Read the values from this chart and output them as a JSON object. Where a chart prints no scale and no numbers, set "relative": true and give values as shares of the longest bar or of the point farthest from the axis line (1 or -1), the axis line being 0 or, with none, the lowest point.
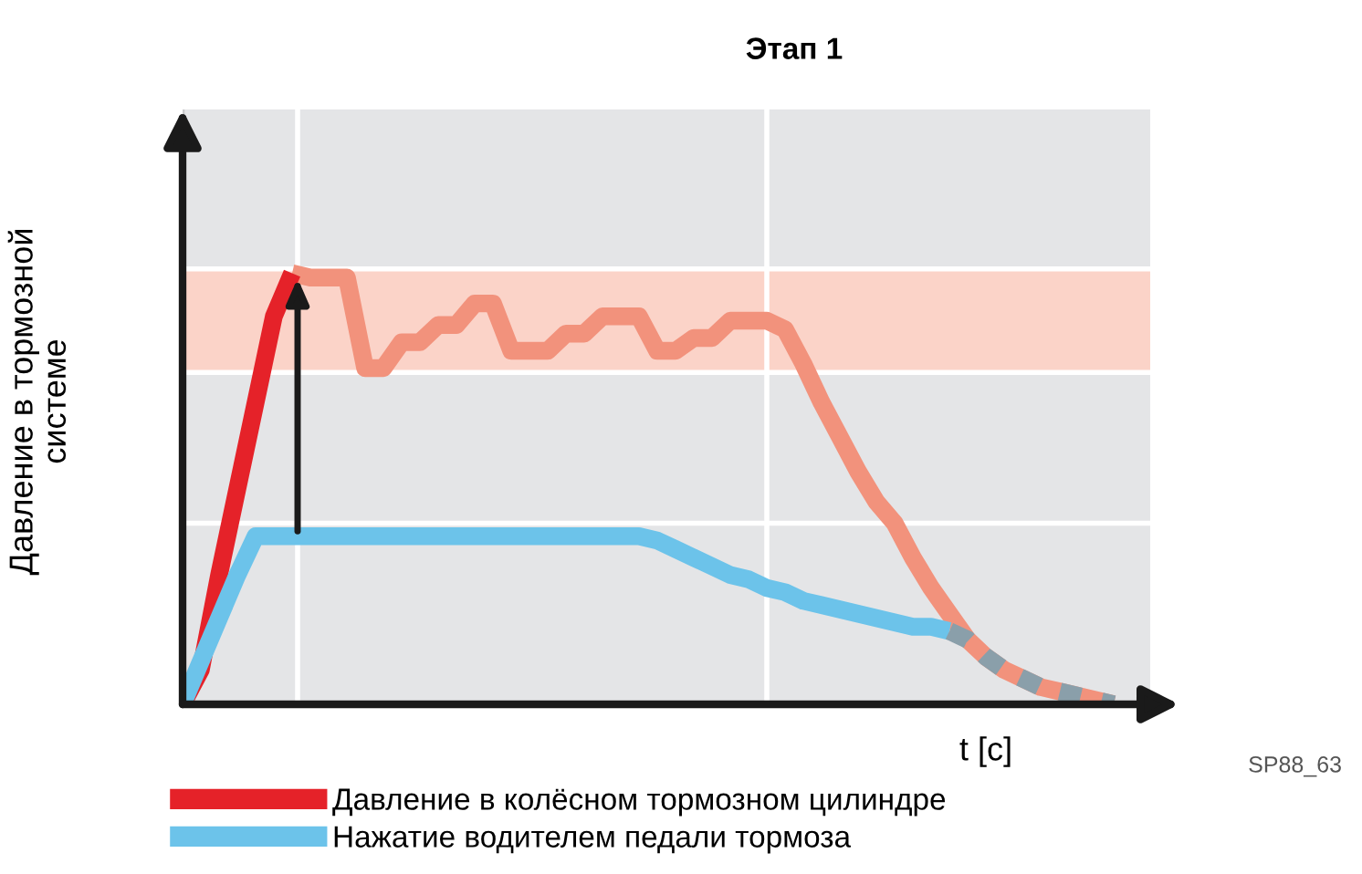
{
  "chart_data": {
    "type": "line",
    "title": "Этап 1",
    "ylabel": "Давление в тормозной\nсистеме",
    "xlabel": "t [c]",
    "relative": true,
    "legend": "bottom",
    "marker": "none",
    "categories": [
      null,
      null,
      null,
      null,
      null,
      null,
      null,
      null,
      null,
      null,
      null,
      null,
      null,
      null,
      null,
      null,
      null,
      null,
      null,
      null,
      null,
      null,
      null,
      null,
      null,
      null,
      null,
      null,
      null,
      null,
      null,
      null,
      null,
      null,
      null,
      null,
      null,
      null,
      null,
      null,
      null,
      null,
      null,
      null,
      null,
      null,
      null,
      null,
      null,
      null,
      null,
      null,
      null,
      null
    ],
    "series": [
      {
        "color": "#f2927c",
        "line_style": "solid",
        "values": [
          null,
          null,
          null,
          null,
          null,
          null,
          1.0,
          0.99,
          0.99,
          0.99,
          0.78,
          0.78,
          0.84,
          0.84,
          0.88,
          0.88,
          0.93,
          0.93,
          0.82,
          0.82,
          0.82,
          0.86,
          0.86,
          0.9,
          0.9,
          0.9,
          0.82,
          0.82,
          0.85,
          0.85,
          0.89,
          0.89,
          0.89,
          0.87,
          0.79,
          0.7,
          0.62,
          0.54,
          0.47,
          0.42,
          0.34,
          0.27,
          0.21,
          0.15,
          0.11,
          0.08,
          0.06,
          0.04,
          0.03,
          0.02,
          0.01,
          0.0,
          null,
          null
        ]
      },
      {
        "name": "Давление в колёсном тормозном цилиндре",
        "color": "#e52229",
        "line_style": "solid",
        "values": [
          0.0,
          0.08,
          0.3,
          0.5,
          0.7,
          0.9,
          1.0,
          null,
          null,
          null,
          null,
          null,
          null,
          null,
          null,
          null,
          null,
          null,
          null,
          null,
          null,
          null,
          null,
          null,
          null,
          null,
          null,
          null,
          null,
          null,
          null,
          null,
          null,
          null,
          null,
          null,
          null,
          null,
          null,
          null,
          null,
          null,
          null,
          null,
          null,
          null,
          null,
          null,
          null,
          null,
          null,
          null,
          null,
          null
        ]
      },
      {
        "name": "Нажатие водителем педали тормоза",
        "color": "#6cc3ea",
        "line_style": "solid",
        "values": [
          0.0,
          0.1,
          0.2,
          0.3,
          0.39,
          0.39,
          0.39,
          0.39,
          0.39,
          0.39,
          0.39,
          0.39,
          0.39,
          0.39,
          0.39,
          0.39,
          0.39,
          0.39,
          0.39,
          0.39,
          0.39,
          0.39,
          0.39,
          0.39,
          0.39,
          0.39,
          0.38,
          0.36,
          0.34,
          0.32,
          0.3,
          0.29,
          0.27,
          0.26,
          0.24,
          0.23,
          0.22,
          0.21,
          0.2,
          0.19,
          0.18,
          0.18,
          0.17,
          null,
          null,
          null,
          null,
          null,
          null,
          null,
          null,
          null,
          null,
          null
        ]
      },
      {
        "color": "#8a9faa",
        "line_style": "dashed",
        "values": [
          null,
          null,
          null,
          null,
          null,
          null,
          null,
          null,
          null,
          null,
          null,
          null,
          null,
          null,
          null,
          null,
          null,
          null,
          null,
          null,
          null,
          null,
          null,
          null,
          null,
          null,
          null,
          null,
          null,
          null,
          null,
          null,
          null,
          null,
          null,
          null,
          null,
          null,
          null,
          null,
          null,
          null,
          0.17,
          0.15,
          0.11,
          0.08,
          0.06,
          0.04,
          0.03,
          0.02,
          0.01,
          0.0,
          null,
          null
        ]
      }
    ],
    "bands": [
      {
        "axis": "y",
        "from": 0.77,
        "to": 1.01,
        "color": "#fbd3c8"
      }
    ],
    "ref_lines": [
      {
        "axis": "y",
        "value": 0.42,
        "color": "#ffffff"
      }
    ],
    "annotations": [
      "SP88_63"
    ]
  }
}
